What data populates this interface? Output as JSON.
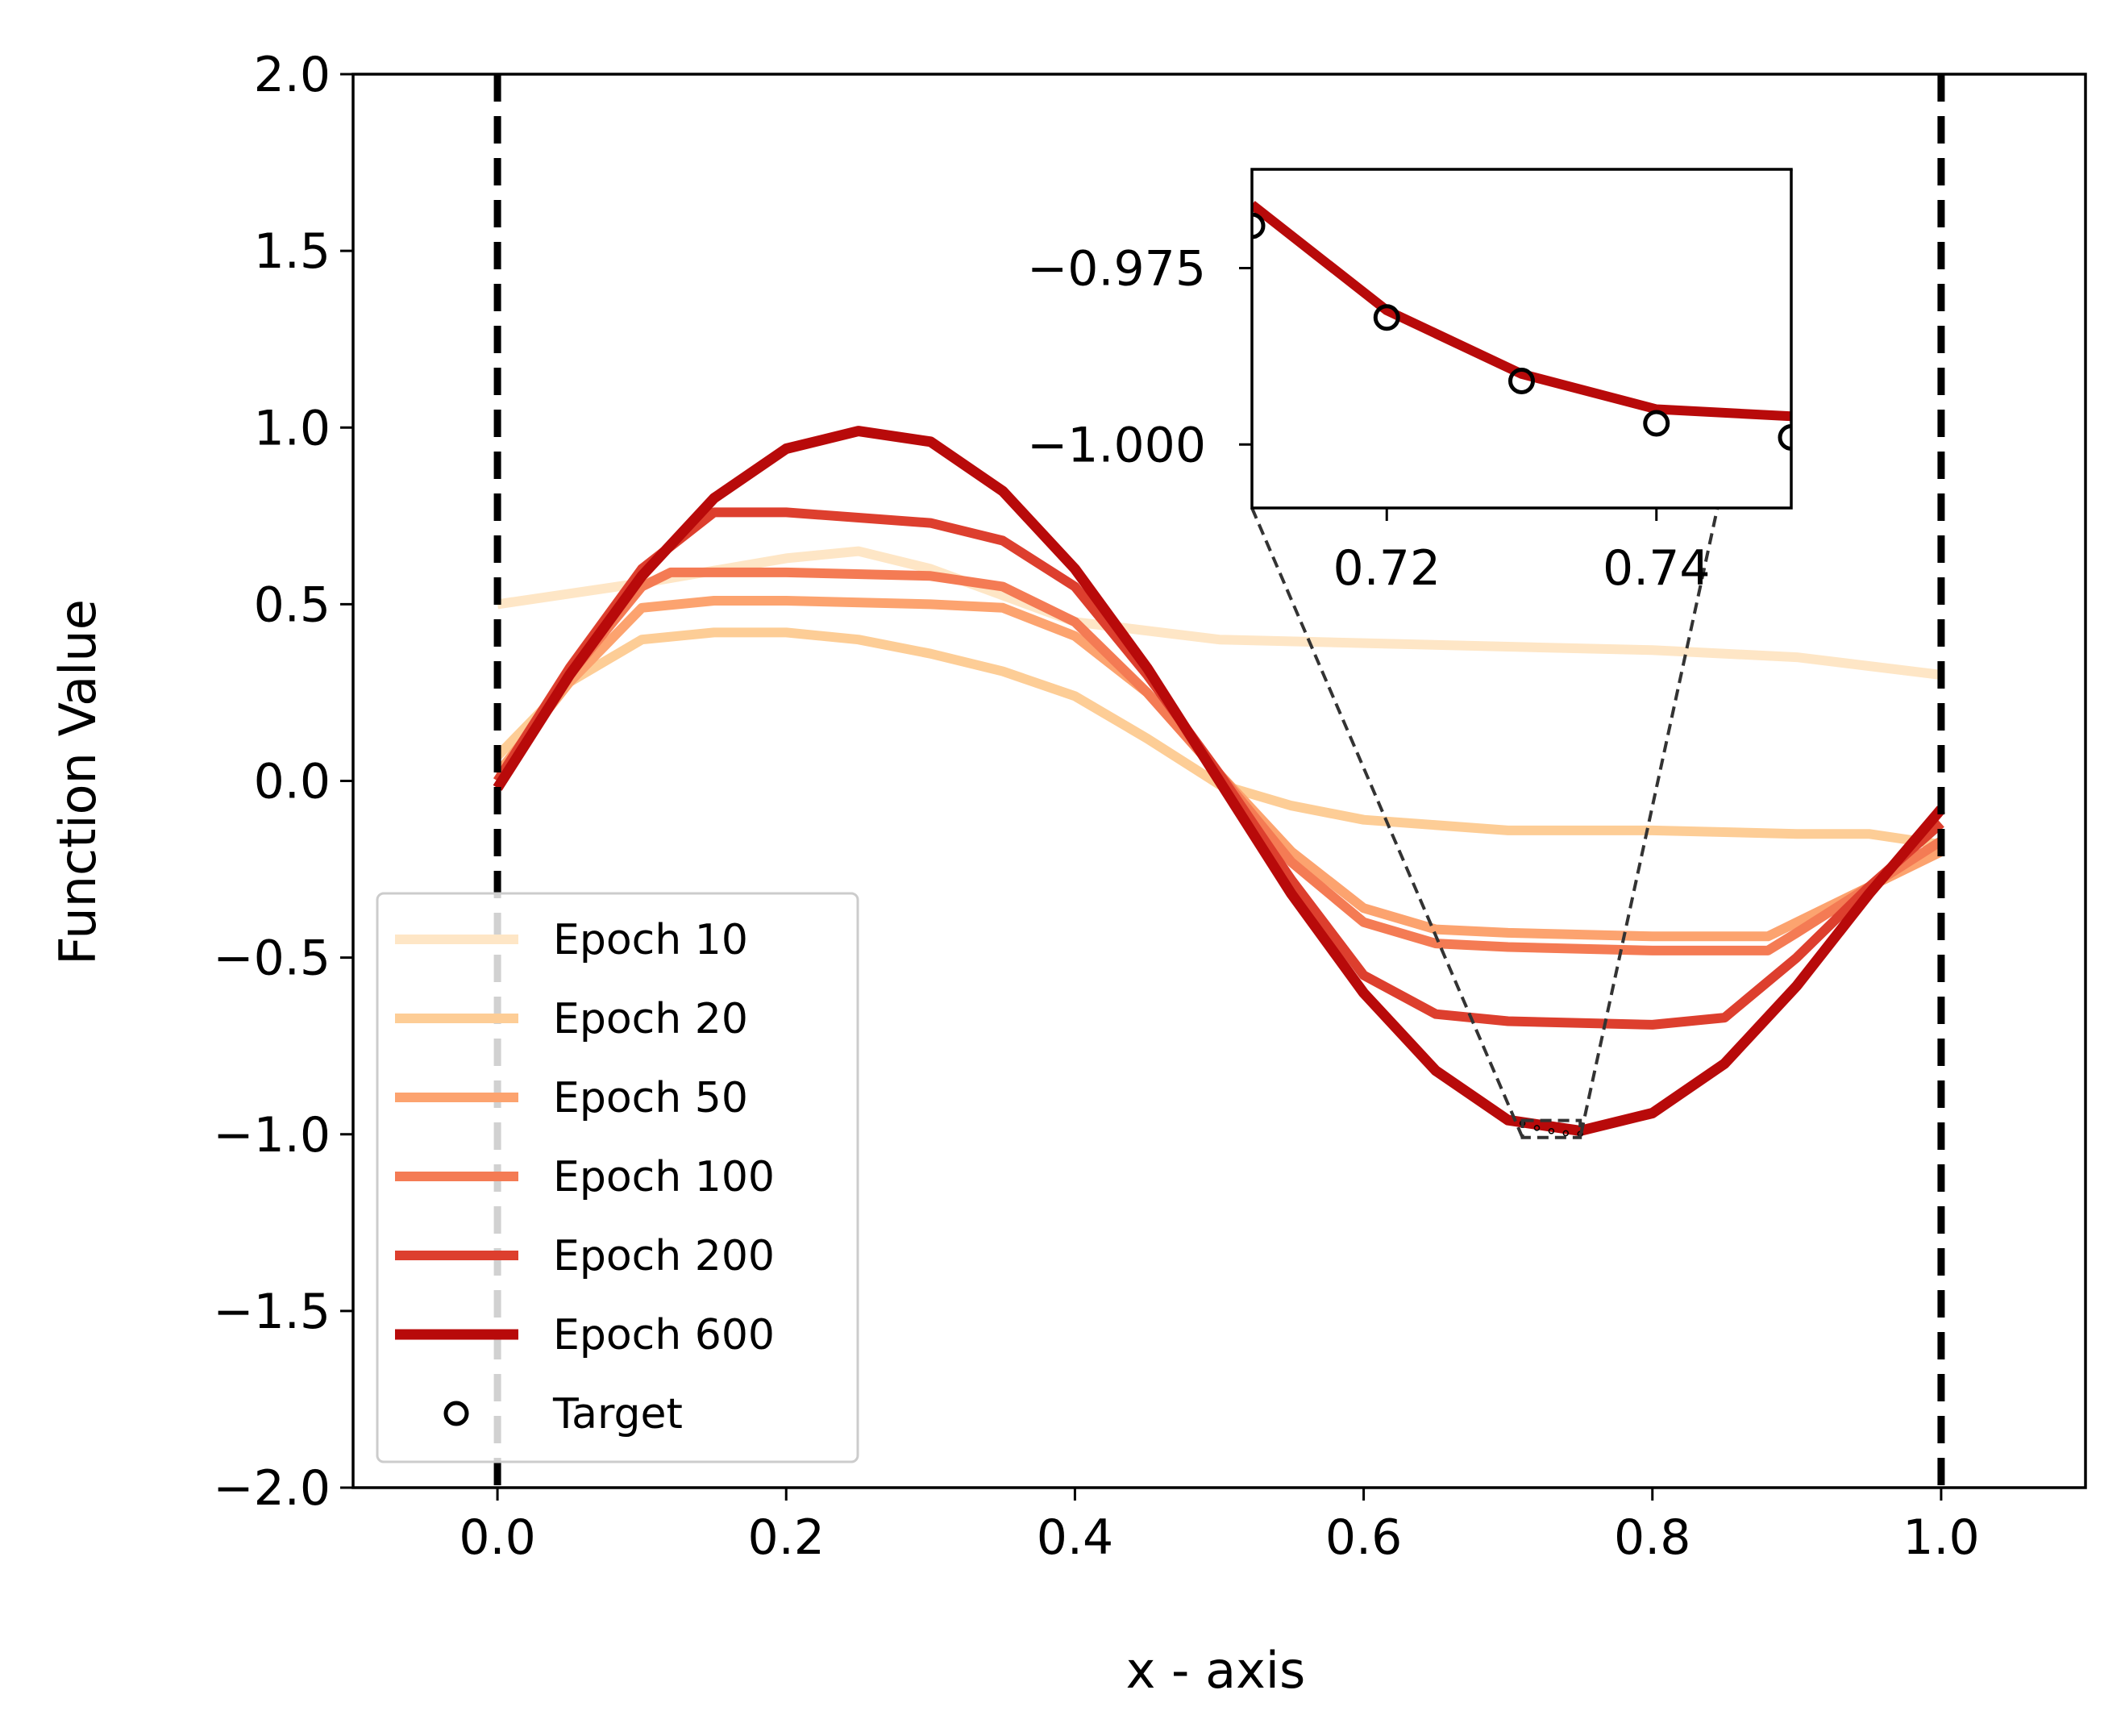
{
  "chart_data": {
    "type": "line",
    "xlabel": "x - axis",
    "ylabel": "Function Value",
    "xlim": [
      -0.1,
      1.1
    ],
    "ylim": [
      -2.0,
      2.0
    ],
    "xticks": [
      0.0,
      0.2,
      0.4,
      0.6,
      0.8,
      1.0
    ],
    "xtick_labels": [
      "0.0",
      "0.2",
      "0.4",
      "0.6",
      "0.8",
      "1.0"
    ],
    "yticks": [
      2.0,
      1.5,
      1.0,
      0.5,
      0.0,
      -0.5,
      -1.0,
      -1.5,
      -2.0
    ],
    "ytick_labels": [
      "2.0",
      "1.5",
      "1.0",
      "0.5",
      "0.0",
      "−0.5",
      "−1.0",
      "−1.5",
      "−2.0"
    ],
    "vertical_lines": [
      0.0,
      1.0
    ],
    "legend_position": "lower-left",
    "series": [
      {
        "name": "Epoch 10",
        "color": "#fee6c6",
        "x": [
          0,
          0.1,
          0.2,
          0.25,
          0.3,
          0.4,
          0.5,
          0.6,
          0.7,
          0.8,
          0.9,
          1.0
        ],
        "y": [
          0.5,
          0.56,
          0.63,
          0.65,
          0.6,
          0.45,
          0.4,
          0.39,
          0.38,
          0.37,
          0.35,
          0.3
        ]
      },
      {
        "name": "Epoch 20",
        "color": "#fdcd96",
        "x": [
          0,
          0.05,
          0.1,
          0.15,
          0.2,
          0.25,
          0.3,
          0.35,
          0.4,
          0.45,
          0.5,
          0.55,
          0.6,
          0.7,
          0.8,
          0.9,
          0.95,
          1.0
        ],
        "y": [
          0.07,
          0.28,
          0.4,
          0.42,
          0.42,
          0.4,
          0.36,
          0.31,
          0.24,
          0.12,
          -0.01,
          -0.07,
          -0.11,
          -0.14,
          -0.14,
          -0.15,
          -0.15,
          -0.18
        ]
      },
      {
        "name": "Epoch 50",
        "color": "#fca36f",
        "x": [
          0,
          0.05,
          0.1,
          0.15,
          0.2,
          0.3,
          0.35,
          0.4,
          0.45,
          0.5,
          0.55,
          0.6,
          0.65,
          0.7,
          0.8,
          0.88,
          0.9,
          0.95,
          1.0
        ],
        "y": [
          0.02,
          0.28,
          0.49,
          0.51,
          0.51,
          0.5,
          0.49,
          0.41,
          0.25,
          0.02,
          -0.2,
          -0.36,
          -0.42,
          -0.43,
          -0.44,
          -0.44,
          -0.4,
          -0.3,
          -0.2
        ]
      },
      {
        "name": "Epoch 100",
        "color": "#f47b54",
        "x": [
          0,
          0.05,
          0.1,
          0.12,
          0.2,
          0.3,
          0.35,
          0.4,
          0.45,
          0.5,
          0.55,
          0.6,
          0.65,
          0.7,
          0.8,
          0.88,
          0.9,
          0.95,
          1.0
        ],
        "y": [
          0.0,
          0.3,
          0.55,
          0.59,
          0.59,
          0.58,
          0.55,
          0.45,
          0.25,
          0.02,
          -0.23,
          -0.4,
          -0.46,
          -0.47,
          -0.48,
          -0.48,
          -0.43,
          -0.3,
          -0.17
        ]
      },
      {
        "name": "Epoch 200",
        "color": "#dd3f2e",
        "x": [
          0,
          0.05,
          0.1,
          0.15,
          0.2,
          0.3,
          0.35,
          0.4,
          0.45,
          0.5,
          0.55,
          0.6,
          0.65,
          0.7,
          0.8,
          0.85,
          0.9,
          0.95,
          1.0
        ],
        "y": [
          0.0,
          0.32,
          0.6,
          0.76,
          0.76,
          0.73,
          0.68,
          0.55,
          0.3,
          0.02,
          -0.28,
          -0.55,
          -0.66,
          -0.68,
          -0.69,
          -0.67,
          -0.5,
          -0.3,
          -0.12
        ]
      },
      {
        "name": "Epoch 600",
        "color": "#b80a0a",
        "x": [
          0,
          0.05,
          0.1,
          0.15,
          0.2,
          0.25,
          0.3,
          0.35,
          0.4,
          0.45,
          0.5,
          0.55,
          0.6,
          0.65,
          0.7,
          0.75,
          0.8,
          0.85,
          0.9,
          0.95,
          1.0
        ],
        "y": [
          -0.02,
          0.3,
          0.58,
          0.8,
          0.94,
          0.99,
          0.96,
          0.82,
          0.6,
          0.32,
          0.0,
          -0.32,
          -0.6,
          -0.82,
          -0.96,
          -0.99,
          -0.94,
          -0.8,
          -0.58,
          -0.32,
          -0.08
        ]
      }
    ],
    "target": {
      "name": "Target",
      "x": [
        0.71,
        0.72,
        0.73,
        0.74,
        0.75
      ],
      "y": [
        -0.969,
        -0.982,
        -0.991,
        -0.997,
        -0.999
      ]
    },
    "inset": {
      "xlim": [
        0.71,
        0.75
      ],
      "ylim": [
        -1.009,
        -0.961
      ],
      "xticks": [
        0.72,
        0.74
      ],
      "xtick_labels": [
        "0.72",
        "0.74"
      ],
      "yticks": [
        -0.975,
        -1.0
      ],
      "ytick_labels": [
        "−0.975",
        "−1.000"
      ],
      "series": {
        "name": "Epoch 600",
        "color": "#b80a0a",
        "x": [
          0.71,
          0.72,
          0.73,
          0.74,
          0.75
        ],
        "y": [
          -0.966,
          -0.981,
          -0.99,
          -0.995,
          -0.996
        ]
      }
    }
  }
}
